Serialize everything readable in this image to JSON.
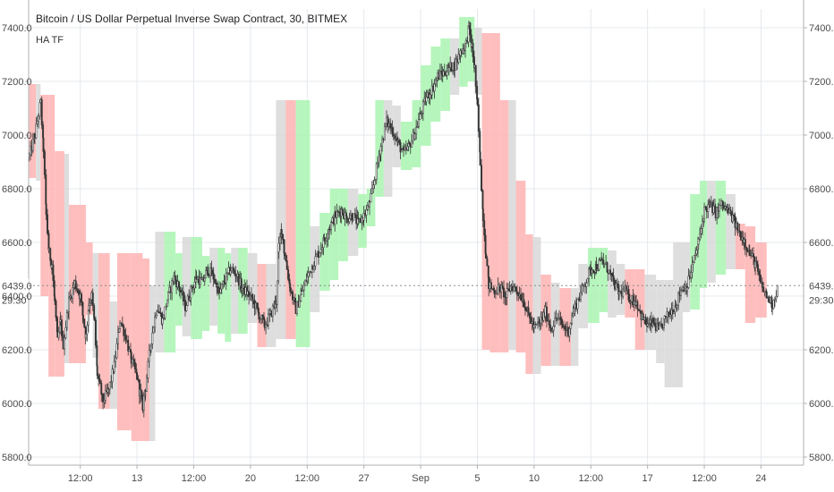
{
  "chart_data": {
    "type": "candlestick",
    "title": "Bitcoin / US Dollar Perpetual Inverse Swap Contract, 30, BITMEX",
    "indicator_label": "HA TF",
    "y_ticks": [
      "5800.0",
      "6000.0",
      "6200.0",
      "6400.0",
      "6600.0",
      "6800.0",
      "7000.0",
      "7200.0",
      "7400.0"
    ],
    "y_tick_values": [
      5800,
      6000,
      6200,
      6400,
      6600,
      6800,
      7000,
      7200,
      7400
    ],
    "ylim": [
      5770,
      7470
    ],
    "x_ticks": [
      {
        "label": "12:00",
        "x": 2
      },
      {
        "label": "13",
        "x": 3
      },
      {
        "label": "12:00",
        "x": 4
      },
      {
        "label": "20",
        "x": 5
      },
      {
        "label": "12:00",
        "x": 6
      },
      {
        "label": "27",
        "x": 7
      },
      {
        "label": "Sep",
        "x": 8
      },
      {
        "label": "5",
        "x": 9
      },
      {
        "label": "10",
        "x": 10
      },
      {
        "label": "12:00",
        "x": 11
      },
      {
        "label": "17",
        "x": 12
      },
      {
        "label": "12:00",
        "x": 13
      },
      {
        "label": "24",
        "x": 14
      }
    ],
    "x_tick_values": [
      2,
      3,
      4,
      5,
      6,
      7,
      8,
      9,
      10,
      11,
      12,
      13,
      14
    ],
    "xlim": [
      1.09,
      14.75
    ],
    "last_price": {
      "label": "6439.0",
      "value": 6439,
      "countdown": "29:30"
    },
    "colors": {
      "up": "#a9f5b1",
      "down": "#ffb3b3",
      "neutral": "#d8d8d8",
      "candle": "#333333",
      "grid": "#e4e8ee",
      "axis": "#b0b0b0"
    },
    "blocks": [
      {
        "x0": 1.1,
        "x1": 1.22,
        "low": 6840,
        "high": 7190,
        "color": "down"
      },
      {
        "x0": 1.22,
        "x1": 1.3,
        "low": 6830,
        "high": 7190,
        "color": "neutral"
      },
      {
        "x0": 1.3,
        "x1": 1.44,
        "low": 6400,
        "high": 7150,
        "color": "down"
      },
      {
        "x0": 1.44,
        "x1": 1.55,
        "low": 6100,
        "high": 7150,
        "color": "down"
      },
      {
        "x0": 1.55,
        "x1": 1.72,
        "low": 6100,
        "high": 6940,
        "color": "down"
      },
      {
        "x0": 1.72,
        "x1": 1.8,
        "low": 6150,
        "high": 6930,
        "color": "neutral"
      },
      {
        "x0": 1.8,
        "x1": 2.1,
        "low": 6150,
        "high": 6740,
        "color": "down"
      },
      {
        "x0": 2.1,
        "x1": 2.22,
        "low": 6330,
        "high": 6600,
        "color": "down"
      },
      {
        "x0": 2.22,
        "x1": 2.32,
        "low": 6170,
        "high": 6560,
        "color": "neutral"
      },
      {
        "x0": 2.32,
        "x1": 2.52,
        "low": 5980,
        "high": 6560,
        "color": "down"
      },
      {
        "x0": 2.52,
        "x1": 2.65,
        "low": 5980,
        "high": 6380,
        "color": "neutral"
      },
      {
        "x0": 2.65,
        "x1": 2.9,
        "low": 5900,
        "high": 6560,
        "color": "down"
      },
      {
        "x0": 2.9,
        "x1": 3.1,
        "low": 5860,
        "high": 6560,
        "color": "down"
      },
      {
        "x0": 3.1,
        "x1": 3.22,
        "low": 5860,
        "high": 6540,
        "color": "down"
      },
      {
        "x0": 3.22,
        "x1": 3.32,
        "low": 5860,
        "high": 6440,
        "color": "neutral"
      },
      {
        "x0": 3.32,
        "x1": 3.48,
        "low": 6190,
        "high": 6640,
        "color": "neutral"
      },
      {
        "x0": 3.48,
        "x1": 3.68,
        "low": 6190,
        "high": 6640,
        "color": "up"
      },
      {
        "x0": 3.68,
        "x1": 3.8,
        "low": 6290,
        "high": 6560,
        "color": "up"
      },
      {
        "x0": 3.8,
        "x1": 3.95,
        "low": 6250,
        "high": 6620,
        "color": "neutral"
      },
      {
        "x0": 3.95,
        "x1": 4.15,
        "low": 6240,
        "high": 6620,
        "color": "up"
      },
      {
        "x0": 4.15,
        "x1": 4.28,
        "low": 6270,
        "high": 6550,
        "color": "up"
      },
      {
        "x0": 4.28,
        "x1": 4.42,
        "low": 6290,
        "high": 6580,
        "color": "neutral"
      },
      {
        "x0": 4.42,
        "x1": 4.55,
        "low": 6260,
        "high": 6580,
        "color": "up"
      },
      {
        "x0": 4.55,
        "x1": 4.66,
        "low": 6230,
        "high": 6560,
        "color": "up"
      },
      {
        "x0": 4.66,
        "x1": 4.78,
        "low": 6260,
        "high": 6580,
        "color": "neutral"
      },
      {
        "x0": 4.78,
        "x1": 4.95,
        "low": 6260,
        "high": 6580,
        "color": "up"
      },
      {
        "x0": 4.95,
        "x1": 5.12,
        "low": 6300,
        "high": 6560,
        "color": "neutral"
      },
      {
        "x0": 5.12,
        "x1": 5.28,
        "low": 6210,
        "high": 6520,
        "color": "down"
      },
      {
        "x0": 5.28,
        "x1": 5.45,
        "low": 6210,
        "high": 6520,
        "color": "neutral"
      },
      {
        "x0": 5.45,
        "x1": 5.62,
        "low": 6240,
        "high": 7130,
        "color": "neutral"
      },
      {
        "x0": 5.62,
        "x1": 5.8,
        "low": 6240,
        "high": 7130,
        "color": "down"
      },
      {
        "x0": 5.8,
        "x1": 6.05,
        "low": 6210,
        "high": 7130,
        "color": "up"
      },
      {
        "x0": 6.05,
        "x1": 6.22,
        "low": 6340,
        "high": 6660,
        "color": "neutral"
      },
      {
        "x0": 6.22,
        "x1": 6.4,
        "low": 6420,
        "high": 6710,
        "color": "up"
      },
      {
        "x0": 6.4,
        "x1": 6.55,
        "low": 6460,
        "high": 6800,
        "color": "up"
      },
      {
        "x0": 6.55,
        "x1": 6.72,
        "low": 6530,
        "high": 6800,
        "color": "up"
      },
      {
        "x0": 6.72,
        "x1": 6.9,
        "low": 6550,
        "high": 6800,
        "color": "neutral"
      },
      {
        "x0": 6.9,
        "x1": 7.05,
        "low": 6580,
        "high": 6780,
        "color": "up"
      },
      {
        "x0": 7.05,
        "x1": 7.2,
        "low": 6660,
        "high": 6800,
        "color": "up"
      },
      {
        "x0": 7.2,
        "x1": 7.35,
        "low": 6770,
        "high": 7130,
        "color": "up"
      },
      {
        "x0": 7.35,
        "x1": 7.5,
        "low": 6770,
        "high": 7130,
        "color": "neutral"
      },
      {
        "x0": 7.5,
        "x1": 7.65,
        "low": 6880,
        "high": 7110,
        "color": "neutral"
      },
      {
        "x0": 7.65,
        "x1": 7.85,
        "low": 6870,
        "high": 7050,
        "color": "up"
      },
      {
        "x0": 7.85,
        "x1": 8.0,
        "low": 6880,
        "high": 7130,
        "color": "up"
      },
      {
        "x0": 8.0,
        "x1": 8.18,
        "low": 6960,
        "high": 7260,
        "color": "up"
      },
      {
        "x0": 8.18,
        "x1": 8.35,
        "low": 7050,
        "high": 7330,
        "color": "up"
      },
      {
        "x0": 8.35,
        "x1": 8.52,
        "low": 7090,
        "high": 7360,
        "color": "up"
      },
      {
        "x0": 8.52,
        "x1": 8.68,
        "low": 7150,
        "high": 7360,
        "color": "neutral"
      },
      {
        "x0": 8.68,
        "x1": 8.83,
        "low": 7180,
        "high": 7440,
        "color": "up"
      },
      {
        "x0": 8.83,
        "x1": 8.95,
        "low": 7200,
        "high": 7440,
        "color": "up"
      },
      {
        "x0": 8.95,
        "x1": 9.08,
        "low": 7150,
        "high": 7400,
        "color": "neutral"
      },
      {
        "x0": 9.08,
        "x1": 9.22,
        "low": 6200,
        "high": 7380,
        "color": "down"
      },
      {
        "x0": 9.22,
        "x1": 9.4,
        "low": 6190,
        "high": 7380,
        "color": "down"
      },
      {
        "x0": 9.4,
        "x1": 9.55,
        "low": 6190,
        "high": 7130,
        "color": "down"
      },
      {
        "x0": 9.55,
        "x1": 9.68,
        "low": 6200,
        "high": 7130,
        "color": "neutral"
      },
      {
        "x0": 9.68,
        "x1": 9.85,
        "low": 6190,
        "high": 6830,
        "color": "down"
      },
      {
        "x0": 9.85,
        "x1": 9.98,
        "low": 6110,
        "high": 6630,
        "color": "down"
      },
      {
        "x0": 9.98,
        "x1": 10.12,
        "low": 6110,
        "high": 6620,
        "color": "neutral"
      },
      {
        "x0": 10.12,
        "x1": 10.3,
        "low": 6140,
        "high": 6480,
        "color": "down"
      },
      {
        "x0": 10.3,
        "x1": 10.45,
        "low": 6140,
        "high": 6450,
        "color": "neutral"
      },
      {
        "x0": 10.45,
        "x1": 10.65,
        "low": 6140,
        "high": 6430,
        "color": "down"
      },
      {
        "x0": 10.65,
        "x1": 10.78,
        "low": 6140,
        "high": 6430,
        "color": "neutral"
      },
      {
        "x0": 10.78,
        "x1": 10.95,
        "low": 6280,
        "high": 6520,
        "color": "neutral"
      },
      {
        "x0": 10.95,
        "x1": 11.15,
        "low": 6300,
        "high": 6580,
        "color": "up"
      },
      {
        "x0": 11.15,
        "x1": 11.3,
        "low": 6340,
        "high": 6580,
        "color": "up"
      },
      {
        "x0": 11.3,
        "x1": 11.45,
        "low": 6320,
        "high": 6570,
        "color": "neutral"
      },
      {
        "x0": 11.45,
        "x1": 11.6,
        "low": 6330,
        "high": 6520,
        "color": "neutral"
      },
      {
        "x0": 11.6,
        "x1": 11.78,
        "low": 6320,
        "high": 6500,
        "color": "down"
      },
      {
        "x0": 11.78,
        "x1": 11.95,
        "low": 6200,
        "high": 6500,
        "color": "down"
      },
      {
        "x0": 11.95,
        "x1": 12.15,
        "low": 6200,
        "high": 6480,
        "color": "neutral"
      },
      {
        "x0": 12.15,
        "x1": 12.3,
        "low": 6150,
        "high": 6460,
        "color": "neutral"
      },
      {
        "x0": 12.3,
        "x1": 12.45,
        "low": 6060,
        "high": 6460,
        "color": "neutral"
      },
      {
        "x0": 12.45,
        "x1": 12.62,
        "low": 6060,
        "high": 6600,
        "color": "neutral"
      },
      {
        "x0": 12.62,
        "x1": 12.75,
        "low": 6340,
        "high": 6600,
        "color": "neutral"
      },
      {
        "x0": 12.75,
        "x1": 12.92,
        "low": 6350,
        "high": 6780,
        "color": "up"
      },
      {
        "x0": 12.92,
        "x1": 13.05,
        "low": 6430,
        "high": 6830,
        "color": "up"
      },
      {
        "x0": 13.05,
        "x1": 13.2,
        "low": 6450,
        "high": 6830,
        "color": "neutral"
      },
      {
        "x0": 13.2,
        "x1": 13.38,
        "low": 6480,
        "high": 6830,
        "color": "up"
      },
      {
        "x0": 13.38,
        "x1": 13.55,
        "low": 6500,
        "high": 6780,
        "color": "neutral"
      },
      {
        "x0": 13.55,
        "x1": 13.72,
        "low": 6500,
        "high": 6670,
        "color": "down"
      },
      {
        "x0": 13.72,
        "x1": 13.9,
        "low": 6300,
        "high": 6660,
        "color": "down"
      },
      {
        "x0": 13.9,
        "x1": 14.1,
        "low": 6320,
        "high": 6600,
        "color": "down"
      }
    ],
    "price_path": [
      [
        1.1,
        6920
      ],
      [
        1.2,
        7000
      ],
      [
        1.3,
        7120
      ],
      [
        1.35,
        6950
      ],
      [
        1.4,
        6700
      ],
      [
        1.45,
        6560
      ],
      [
        1.5,
        6520
      ],
      [
        1.55,
        6380
      ],
      [
        1.6,
        6230
      ],
      [
        1.65,
        6300
      ],
      [
        1.7,
        6220
      ],
      [
        1.8,
        6380
      ],
      [
        1.9,
        6450
      ],
      [
        2.0,
        6400
      ],
      [
        2.05,
        6320
      ],
      [
        2.1,
        6250
      ],
      [
        2.15,
        6370
      ],
      [
        2.2,
        6400
      ],
      [
        2.25,
        6300
      ],
      [
        2.3,
        6110
      ],
      [
        2.35,
        6060
      ],
      [
        2.4,
        6010
      ],
      [
        2.5,
        6050
      ],
      [
        2.6,
        6140
      ],
      [
        2.7,
        6310
      ],
      [
        2.8,
        6250
      ],
      [
        2.9,
        6160
      ],
      [
        3.0,
        6100
      ],
      [
        3.05,
        6040
      ],
      [
        3.1,
        5990
      ],
      [
        3.15,
        6060
      ],
      [
        3.25,
        6240
      ],
      [
        3.35,
        6360
      ],
      [
        3.45,
        6310
      ],
      [
        3.55,
        6400
      ],
      [
        3.65,
        6470
      ],
      [
        3.75,
        6430
      ],
      [
        3.85,
        6360
      ],
      [
        3.95,
        6420
      ],
      [
        4.05,
        6470
      ],
      [
        4.15,
        6450
      ],
      [
        4.25,
        6500
      ],
      [
        4.35,
        6470
      ],
      [
        4.45,
        6410
      ],
      [
        4.55,
        6460
      ],
      [
        4.65,
        6500
      ],
      [
        4.75,
        6480
      ],
      [
        4.85,
        6430
      ],
      [
        4.95,
        6410
      ],
      [
        5.05,
        6380
      ],
      [
        5.15,
        6330
      ],
      [
        5.25,
        6290
      ],
      [
        5.35,
        6330
      ],
      [
        5.45,
        6380
      ],
      [
        5.5,
        6580
      ],
      [
        5.55,
        6650
      ],
      [
        5.6,
        6560
      ],
      [
        5.7,
        6430
      ],
      [
        5.8,
        6350
      ],
      [
        5.9,
        6410
      ],
      [
        6.0,
        6470
      ],
      [
        6.1,
        6520
      ],
      [
        6.2,
        6560
      ],
      [
        6.3,
        6610
      ],
      [
        6.4,
        6660
      ],
      [
        6.5,
        6700
      ],
      [
        6.6,
        6720
      ],
      [
        6.7,
        6690
      ],
      [
        6.8,
        6700
      ],
      [
        6.9,
        6670
      ],
      [
        7.0,
        6700
      ],
      [
        7.1,
        6740
      ],
      [
        7.2,
        6850
      ],
      [
        7.3,
        6960
      ],
      [
        7.4,
        7050
      ],
      [
        7.5,
        7020
      ],
      [
        7.6,
        6970
      ],
      [
        7.7,
        6930
      ],
      [
        7.8,
        6960
      ],
      [
        7.9,
        7010
      ],
      [
        8.0,
        7080
      ],
      [
        8.1,
        7140
      ],
      [
        8.2,
        7170
      ],
      [
        8.3,
        7220
      ],
      [
        8.4,
        7230
      ],
      [
        8.5,
        7250
      ],
      [
        8.6,
        7260
      ],
      [
        8.7,
        7310
      ],
      [
        8.8,
        7340
      ],
      [
        8.85,
        7400
      ],
      [
        8.9,
        7330
      ],
      [
        8.95,
        7250
      ],
      [
        9.0,
        7100
      ],
      [
        9.05,
        6900
      ],
      [
        9.1,
        6700
      ],
      [
        9.15,
        6560
      ],
      [
        9.2,
        6440
      ],
      [
        9.3,
        6420
      ],
      [
        9.4,
        6430
      ],
      [
        9.5,
        6400
      ],
      [
        9.6,
        6440
      ],
      [
        9.7,
        6420
      ],
      [
        9.8,
        6390
      ],
      [
        9.9,
        6330
      ],
      [
        10.0,
        6280
      ],
      [
        10.1,
        6300
      ],
      [
        10.2,
        6340
      ],
      [
        10.3,
        6280
      ],
      [
        10.4,
        6320
      ],
      [
        10.5,
        6290
      ],
      [
        10.6,
        6270
      ],
      [
        10.7,
        6350
      ],
      [
        10.8,
        6400
      ],
      [
        10.9,
        6450
      ],
      [
        11.0,
        6500
      ],
      [
        11.1,
        6510
      ],
      [
        11.2,
        6530
      ],
      [
        11.3,
        6500
      ],
      [
        11.4,
        6450
      ],
      [
        11.5,
        6410
      ],
      [
        11.6,
        6420
      ],
      [
        11.7,
        6390
      ],
      [
        11.8,
        6380
      ],
      [
        11.9,
        6320
      ],
      [
        12.0,
        6290
      ],
      [
        12.1,
        6300
      ],
      [
        12.2,
        6270
      ],
      [
        12.3,
        6310
      ],
      [
        12.4,
        6340
      ],
      [
        12.5,
        6370
      ],
      [
        12.6,
        6430
      ],
      [
        12.7,
        6440
      ],
      [
        12.8,
        6520
      ],
      [
        12.9,
        6600
      ],
      [
        13.0,
        6720
      ],
      [
        13.1,
        6740
      ],
      [
        13.2,
        6710
      ],
      [
        13.3,
        6740
      ],
      [
        13.4,
        6720
      ],
      [
        13.5,
        6690
      ],
      [
        13.6,
        6640
      ],
      [
        13.7,
        6610
      ],
      [
        13.8,
        6560
      ],
      [
        13.9,
        6520
      ],
      [
        14.0,
        6440
      ],
      [
        14.1,
        6400
      ],
      [
        14.2,
        6370
      ],
      [
        14.3,
        6439
      ]
    ]
  }
}
